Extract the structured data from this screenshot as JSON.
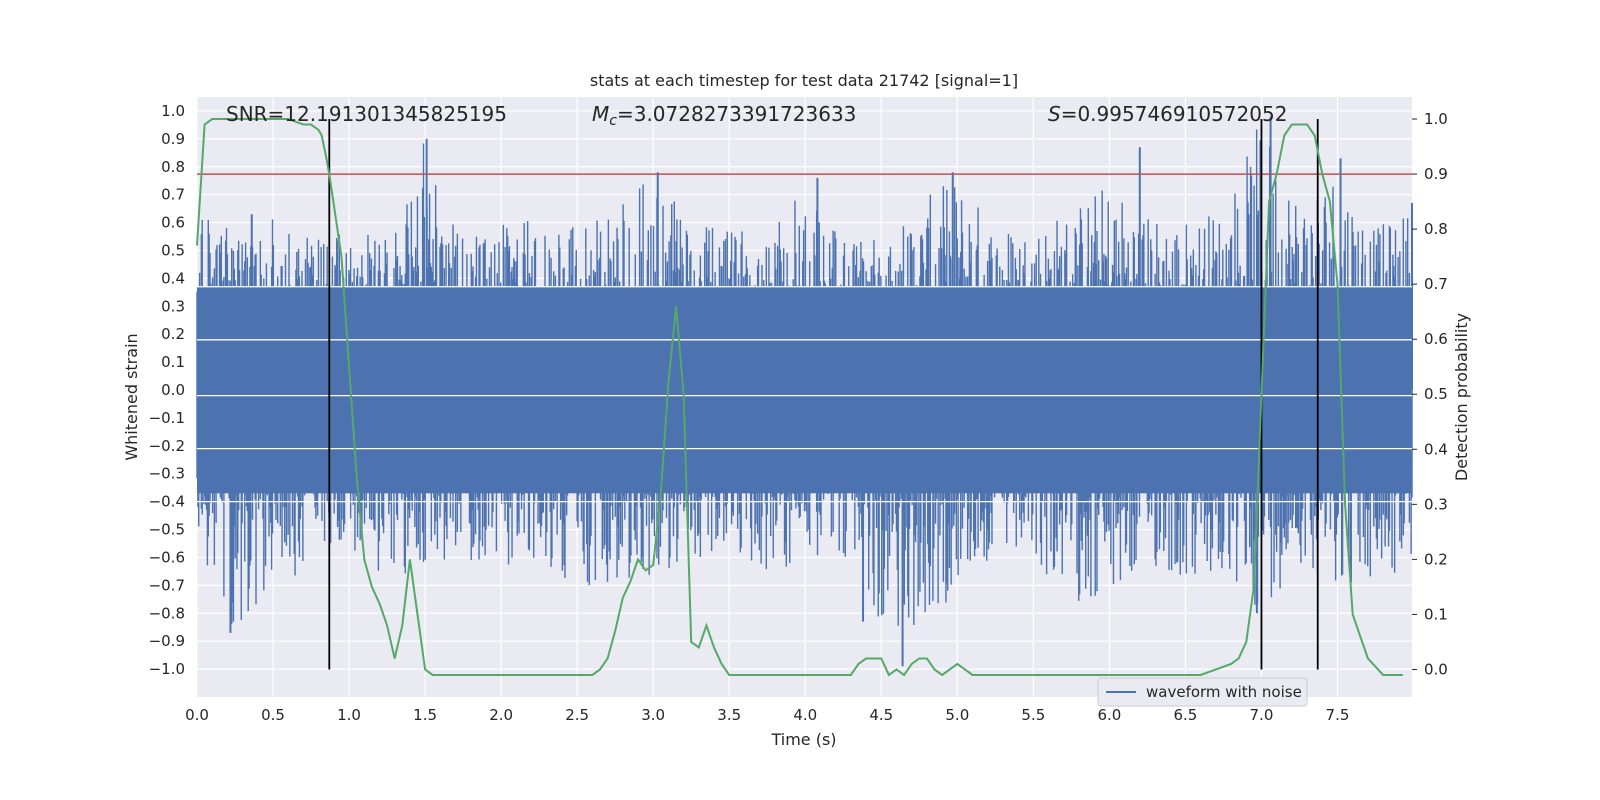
{
  "chart_data": {
    "type": "line",
    "title": "stats at each timestep for test data 21742 [signal=1]",
    "xlabel": "Time (s)",
    "ylabel_left": "Whitened strain",
    "ylabel_right": "Detection probability",
    "xlim": [
      0,
      7.99
    ],
    "ylim_left": [
      -1.1,
      1.05
    ],
    "ylim_right": [
      -0.05,
      1.04
    ],
    "x_ticks": [
      "0.0",
      "0.5",
      "1.0",
      "1.5",
      "2.0",
      "2.5",
      "3.0",
      "3.5",
      "4.0",
      "4.5",
      "5.0",
      "5.5",
      "6.0",
      "6.5",
      "7.0",
      "7.5"
    ],
    "y_ticks_left": [
      "−1.0",
      "−0.9",
      "−0.8",
      "−0.7",
      "−0.6",
      "−0.5",
      "−0.4",
      "−0.3",
      "−0.2",
      "−0.1",
      "0.0",
      "0.1",
      "0.2",
      "0.3",
      "0.4",
      "0.5",
      "0.6",
      "0.7",
      "0.8",
      "0.9",
      "1.0"
    ],
    "y_ticks_right": [
      "0.0",
      "0.1",
      "0.2",
      "0.3",
      "0.4",
      "0.5",
      "0.6",
      "0.7",
      "0.8",
      "0.9",
      "1.0"
    ],
    "grid": true,
    "legend": {
      "position": "bottom-right",
      "entries": [
        "waveform with noise"
      ]
    },
    "annotations": {
      "snr": "SNR=12.191301345825195",
      "mc_symbol": "M",
      "mc_sub": "c",
      "mc_value": "=3.0728273391723633",
      "s_symbol": "S",
      "s_value": "=0.995746910572052"
    },
    "threshold": {
      "value": 0.9,
      "axis": "right",
      "color": "#c44e52"
    },
    "vertical_lines": [
      {
        "x": 0.87,
        "label": ""
      },
      {
        "x": 7.0,
        "label": ""
      },
      {
        "x": 7.37,
        "label": ""
      }
    ],
    "waveform": {
      "name": "waveform with noise",
      "color": "#4c72b0",
      "envelope_x": [
        0.0,
        0.25,
        0.5,
        0.75,
        1.0,
        1.25,
        1.5,
        1.75,
        2.0,
        2.25,
        2.5,
        2.75,
        3.0,
        3.25,
        3.5,
        3.75,
        4.0,
        4.25,
        4.5,
        4.75,
        5.0,
        5.25,
        5.5,
        5.75,
        6.0,
        6.25,
        6.5,
        6.75,
        7.0,
        7.25,
        7.5,
        7.75,
        7.99
      ],
      "envelope_max": [
        0.62,
        0.6,
        0.63,
        0.57,
        0.58,
        0.56,
        0.9,
        0.57,
        0.6,
        0.62,
        0.6,
        0.65,
        0.78,
        0.6,
        0.57,
        0.62,
        0.76,
        0.56,
        0.55,
        0.67,
        0.78,
        0.6,
        0.6,
        0.66,
        0.76,
        0.64,
        0.62,
        0.66,
        0.98,
        0.72,
        0.83,
        0.58,
        0.66
      ],
      "envelope_min": [
        -0.6,
        -0.87,
        -0.7,
        -0.65,
        -0.6,
        -0.7,
        -0.62,
        -0.6,
        -0.65,
        -0.6,
        -0.72,
        -0.68,
        -0.7,
        -0.62,
        -0.6,
        -0.65,
        -0.64,
        -0.6,
        -0.83,
        -0.99,
        -0.68,
        -0.62,
        -0.64,
        -0.75,
        -0.8,
        -0.64,
        -0.7,
        -0.72,
        -0.8,
        -0.62,
        -0.7,
        -0.72,
        -0.65
      ],
      "spikes": [
        {
          "x": 0.22,
          "y": -0.87
        },
        {
          "x": 0.36,
          "y": 0.63
        },
        {
          "x": 1.51,
          "y": 0.9
        },
        {
          "x": 3.03,
          "y": 0.78
        },
        {
          "x": 4.08,
          "y": 0.76
        },
        {
          "x": 4.38,
          "y": -0.83
        },
        {
          "x": 4.64,
          "y": -0.99
        },
        {
          "x": 4.97,
          "y": 0.78
        },
        {
          "x": 6.2,
          "y": 0.87
        },
        {
          "x": 6.97,
          "y": -0.8
        },
        {
          "x": 7.06,
          "y": 0.98
        },
        {
          "x": 7.52,
          "y": 0.83
        },
        {
          "x": 7.99,
          "y": 0.67
        }
      ]
    },
    "detection_probability": {
      "name": "",
      "color": "#55a868",
      "x": [
        0.0,
        0.05,
        0.1,
        0.2,
        0.3,
        0.4,
        0.5,
        0.6,
        0.7,
        0.75,
        0.8,
        0.82,
        0.85,
        0.87,
        0.95,
        1.0,
        1.05,
        1.1,
        1.15,
        1.2,
        1.25,
        1.3,
        1.35,
        1.4,
        1.45,
        1.5,
        1.55,
        1.6,
        1.7,
        1.8,
        2.0,
        2.2,
        2.4,
        2.6,
        2.65,
        2.7,
        2.75,
        2.8,
        2.85,
        2.9,
        2.95,
        3.0,
        3.05,
        3.1,
        3.15,
        3.2,
        3.25,
        3.3,
        3.35,
        3.4,
        3.45,
        3.5,
        3.6,
        3.7,
        3.8,
        3.9,
        4.0,
        4.2,
        4.3,
        4.35,
        4.4,
        4.45,
        4.5,
        4.55,
        4.6,
        4.65,
        4.7,
        4.75,
        4.8,
        4.85,
        4.9,
        5.0,
        5.1,
        5.2,
        5.4,
        5.6,
        5.8,
        6.0,
        6.1,
        6.2,
        6.3,
        6.4,
        6.5,
        6.6,
        6.7,
        6.8,
        6.85,
        6.9,
        6.95,
        7.0,
        7.05,
        7.1,
        7.15,
        7.2,
        7.25,
        7.3,
        7.35,
        7.4,
        7.45,
        7.5,
        7.55,
        7.6,
        7.7,
        7.8,
        7.93
      ],
      "y": [
        0.77,
        0.99,
        1.0,
        1.0,
        1.0,
        1.0,
        1.0,
        1.0,
        0.99,
        0.99,
        0.98,
        0.97,
        0.93,
        0.9,
        0.75,
        0.55,
        0.35,
        0.2,
        0.15,
        0.12,
        0.08,
        0.02,
        0.08,
        0.2,
        0.1,
        0.0,
        -0.01,
        -0.01,
        -0.01,
        -0.01,
        -0.01,
        -0.01,
        -0.01,
        -0.01,
        0.0,
        0.02,
        0.07,
        0.13,
        0.16,
        0.2,
        0.18,
        0.19,
        0.32,
        0.52,
        0.66,
        0.5,
        0.05,
        0.04,
        0.08,
        0.04,
        0.01,
        -0.01,
        -0.01,
        -0.01,
        -0.01,
        -0.01,
        -0.01,
        -0.01,
        -0.01,
        0.01,
        0.02,
        0.02,
        0.02,
        -0.01,
        0.0,
        -0.01,
        0.01,
        0.02,
        0.02,
        0.0,
        -0.01,
        0.01,
        -0.01,
        -0.01,
        -0.01,
        -0.01,
        -0.01,
        -0.01,
        -0.01,
        -0.01,
        -0.01,
        -0.01,
        -0.01,
        -0.01,
        0.0,
        0.01,
        0.02,
        0.05,
        0.15,
        0.5,
        0.85,
        0.9,
        0.97,
        0.99,
        0.99,
        0.99,
        0.97,
        0.9,
        0.85,
        0.7,
        0.3,
        0.1,
        0.02,
        -0.01,
        -0.01
      ]
    }
  }
}
